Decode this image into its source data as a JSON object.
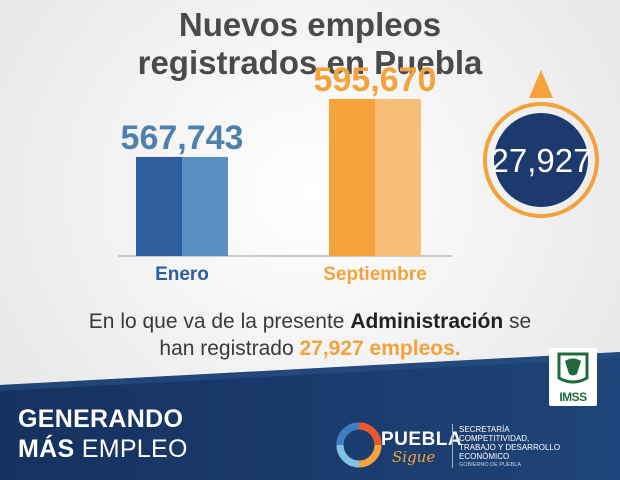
{
  "title_line1": "Nuevos empleos",
  "title_line2": "registrados en Puebla",
  "chart_data": {
    "type": "bar",
    "categories": [
      "Enero",
      "Septiembre"
    ],
    "values": [
      567743,
      595670
    ],
    "data_labels": [
      "567,743",
      "595,670"
    ],
    "colors": [
      "#2d5f9e",
      "#f4a23b"
    ],
    "increase_label": "27,927",
    "increase_value": 27927
  },
  "description": {
    "part1": "En lo que va de la presente ",
    "strong": "Administración",
    "part2": " se",
    "line2_part1": "han registrado ",
    "highlight": "27,927 empleos."
  },
  "footer": {
    "slogan_line1": "GENERANDO",
    "slogan_line2_bold": "MÁS",
    "slogan_line2_rest": " EMPLEO",
    "puebla": "PUEBLA",
    "sigue": "Sigue",
    "secretaria": "SECRETARÍA",
    "competitividad_1": "COMPETITIVIDAD,",
    "competitividad_2": "TRABAJO Y DESARROLLO",
    "competitividad_3": "ECONÓMICO",
    "gobierno": "GOBIERNO DE PUEBLA",
    "imss": "IMSS"
  },
  "colors": {
    "navy": "#1c3a6e",
    "orange": "#f4a23b",
    "blue": "#2d5f9e",
    "light_blue": "#5a8fc4"
  }
}
